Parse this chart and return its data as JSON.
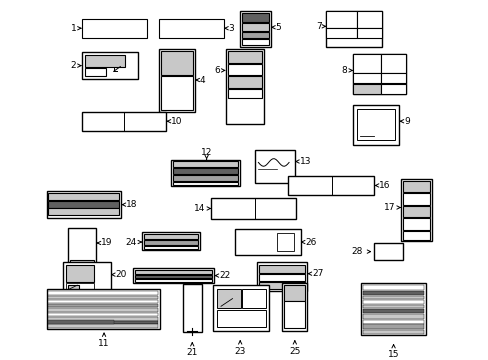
{
  "bg_color": "#ffffff",
  "line_color": "#000000",
  "fill_light": "#c8c8c8",
  "fill_mid": "#a0a0a0",
  "fill_dark": "#606060"
}
